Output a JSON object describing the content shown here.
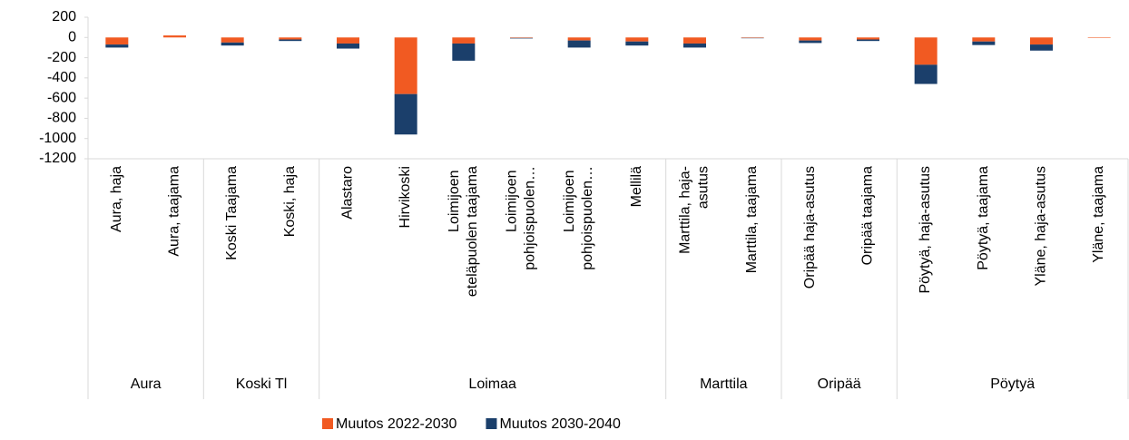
{
  "chart_data": {
    "type": "stacked_bar",
    "groups": [
      {
        "name": "Aura",
        "categories": [
          "Aura, haja",
          "Aura, taajama"
        ]
      },
      {
        "name": "Koski Tl",
        "categories": [
          "Koski Taajama",
          "Koski, haja"
        ]
      },
      {
        "name": "Loimaa",
        "categories": [
          "Alastaro",
          "Hirvikoski",
          "Loimijoen eteläpuolen taajama",
          "Loimijoen pohjoispuolen…",
          "Loimijoen pohjoispuolen…",
          "Mellilä"
        ]
      },
      {
        "name": "Marttila",
        "categories": [
          "Marttila, haja-asutus",
          "Marttila, taajama"
        ]
      },
      {
        "name": "Oripää",
        "categories": [
          "Oripää haja-asutus",
          "Oripää taajama"
        ]
      },
      {
        "name": "Pöytyä",
        "categories": [
          "Pöytyä, haja-asutus",
          "Pöytyä, taajama",
          "Yläne, haja-asutus",
          "Yläne, taajama"
        ]
      }
    ],
    "series": [
      {
        "name": "Muutos 2022-2030",
        "color": "#f15a22",
        "values": [
          -70,
          20,
          -50,
          -20,
          -60,
          -560,
          -60,
          -5,
          -30,
          -40,
          -60,
          -5,
          -30,
          -20,
          -270,
          -40,
          -70,
          -5
        ]
      },
      {
        "name": "Muutos 2030-2040",
        "color": "#1b3f6b",
        "values": [
          -30,
          0,
          -30,
          -15,
          -50,
          -400,
          -170,
          -5,
          -70,
          -40,
          -40,
          -3,
          -25,
          -15,
          -190,
          -35,
          -60,
          0
        ]
      }
    ],
    "ylim": [
      -1200,
      200
    ],
    "yticks": [
      200,
      0,
      -200,
      -400,
      -600,
      -800,
      -1000,
      -1200
    ],
    "legend": "bottom"
  }
}
